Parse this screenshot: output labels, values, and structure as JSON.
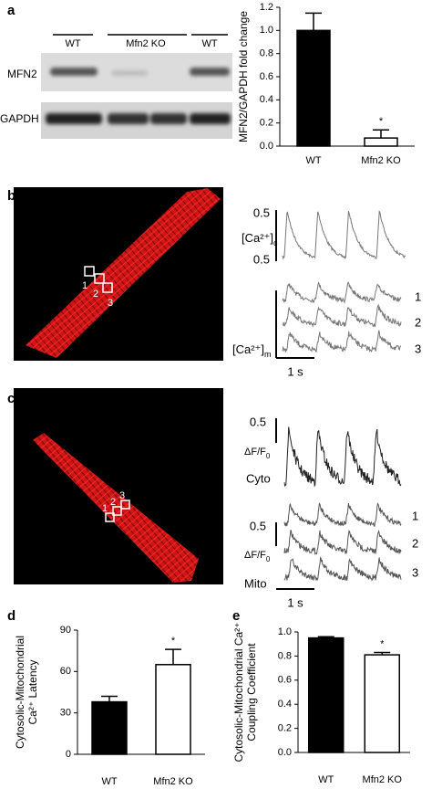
{
  "chart_data": [
    {
      "type": "bar",
      "ylabel": [
        "MFN2/GAPDH fold change"
      ],
      "categories": [
        "WT",
        "Mfn2 KO"
      ],
      "values": [
        1.0,
        0.07
      ],
      "errors": [
        0.15,
        0.07
      ],
      "colors": [
        "#000000",
        "#ffffff"
      ],
      "ylim": [
        0,
        1.2
      ],
      "yticks": [
        {
          "value": 0,
          "label": "0.0"
        },
        0.2,
        0.4,
        0.6,
        0.8,
        {
          "value": 1,
          "label": "1.0"
        },
        1.2
      ],
      "annotation": "*"
    },
    {
      "type": "bar",
      "ylabel": [
        "Cytosolic-Mitochondrial",
        "Ca²⁺ Latency"
      ],
      "categories": [
        "WT",
        "Mfn2 KO"
      ],
      "values": [
        38,
        65
      ],
      "errors": [
        4,
        11
      ],
      "colors": [
        "#000000",
        "#ffffff"
      ],
      "ylim": [
        0,
        90
      ],
      "yticks": [
        0,
        30,
        60,
        90
      ],
      "annotation": "*"
    },
    {
      "type": "bar",
      "ylabel": [
        "Cytosolic-Mitochondrial Ca²⁺",
        "Coupling Coefficient"
      ],
      "categories": [
        "WT",
        "Mfn2 KO"
      ],
      "values": [
        0.95,
        0.81
      ],
      "errors": [
        0.01,
        0.02
      ],
      "colors": [
        "#000000",
        "#ffffff"
      ],
      "ylim": [
        0,
        1.0
      ],
      "yticks": [
        {
          "value": 0,
          "label": "0.0"
        },
        0.2,
        0.4,
        0.6,
        0.8,
        {
          "value": 1,
          "label": "1.0"
        }
      ],
      "annotation": "*"
    }
  ],
  "figure": {
    "panel_labels": [
      "a",
      "b",
      "c",
      "d",
      "e"
    ],
    "blot": {
      "lanes": [
        "WT",
        "Mfn2 KO",
        "WT"
      ],
      "rows": [
        "MFN2",
        "GAPDH"
      ]
    },
    "panel_b": {
      "roi_labels": [
        "1",
        "2",
        "3"
      ],
      "cyto_scale": [
        "0.5",
        "0.5"
      ],
      "cyto_label": {
        "text": "[Ca²⁺]",
        "sub": "c"
      },
      "trace_labels": [
        "1",
        "2",
        "3"
      ],
      "mito_label": {
        "text": "[Ca²⁺]",
        "sub": "m"
      },
      "time_scale": "1 s"
    },
    "panel_c": {
      "roi_labels": [
        "1",
        "2",
        "3"
      ],
      "cyto_scale": "0.5",
      "cyto_unit": {
        "text": "ΔF/F",
        "sub": "0"
      },
      "cyto_label": "Cyto",
      "mito_scale": "0.5",
      "mito_unit": {
        "text": "ΔF/F",
        "sub": "0"
      },
      "mito_label": "Mito",
      "trace_labels": [
        "1",
        "2",
        "3"
      ],
      "time_scale": "1 s"
    }
  }
}
